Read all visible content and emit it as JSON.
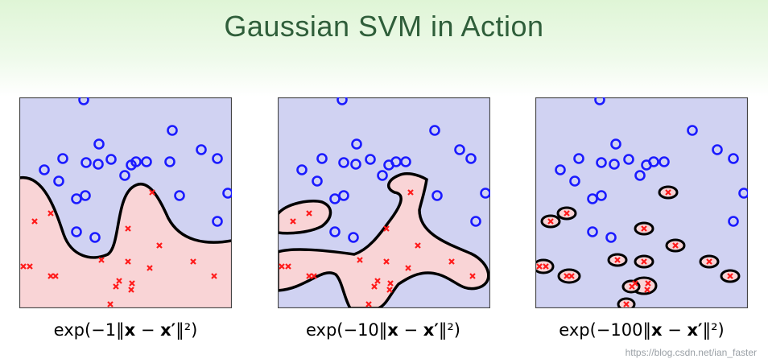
{
  "title": "Gaussian SVM in Action",
  "colors": {
    "blue_region": "#d0d2f2",
    "red_region": "#f9d4d6",
    "circle": "#1a1aff",
    "cross": "#ff1a1a",
    "boundary": "#000000"
  },
  "panels": [
    {
      "formula": {
        "pre": "exp(−1‖",
        "x": "x",
        "mid": " − ",
        "xp": "x′",
        "post": "‖²)"
      }
    },
    {
      "formula": {
        "pre": "exp(−10‖",
        "x": "x",
        "mid": " − ",
        "xp": "x′",
        "post": "‖²)"
      }
    },
    {
      "formula": {
        "pre": "exp(−100‖",
        "x": "x",
        "mid": " − ",
        "xp": "x′",
        "post": "‖²)"
      }
    }
  ],
  "watermark": "https://blog.csdn.net/ian_faster"
}
